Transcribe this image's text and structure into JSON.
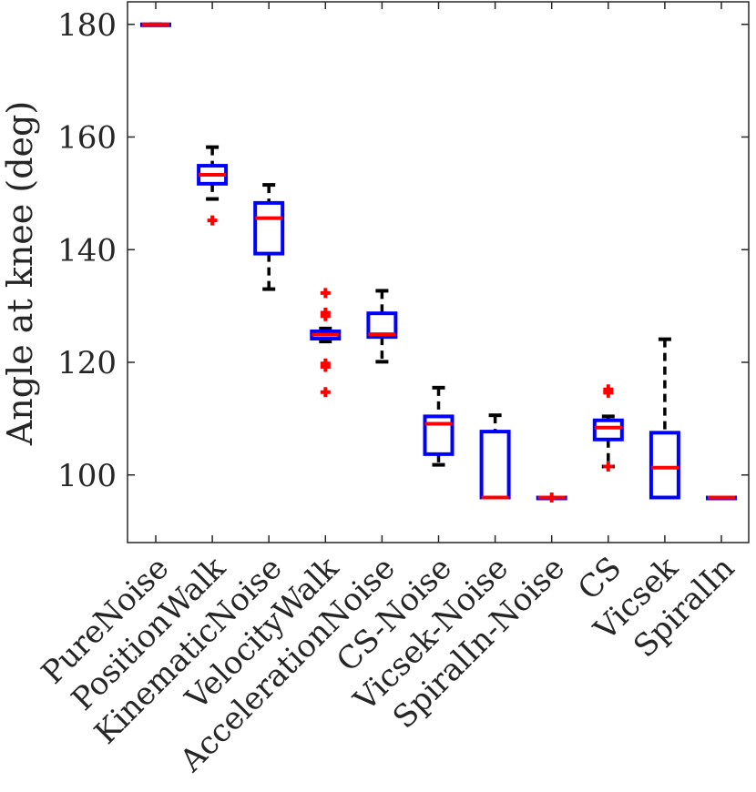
{
  "colors": {
    "box": "#0000ff",
    "median": "#ff0000",
    "whisker": "#000000",
    "outlier": "#ff0000",
    "axis": "#262626"
  },
  "chart_data": {
    "type": "boxplot",
    "ylabel": "Angle at knee (deg)",
    "xlabel": "",
    "ylim": [
      88,
      184
    ],
    "yticks": [
      100,
      120,
      140,
      160,
      180
    ],
    "grid": false,
    "categories": [
      "PureNoise",
      "PositionWalk",
      "KinematicNoise",
      "VelocityWalk",
      "AccelerationNoise",
      "CS-Noise",
      "Vicsek-Noise",
      "SpiralIn-Noise",
      "CS",
      "Vicsek",
      "SpiralIn"
    ],
    "boxes": [
      {
        "name": "PureNoise",
        "whisker_low": 180,
        "q1": 180,
        "median": 180,
        "q3": 180,
        "whisker_high": 180,
        "outliers": []
      },
      {
        "name": "PositionWalk",
        "whisker_low": 149,
        "q1": 151.7,
        "median": 153.3,
        "q3": 154.9,
        "whisker_high": 158.2,
        "outliers": [
          145.2
        ]
      },
      {
        "name": "KinematicNoise",
        "whisker_low": 133,
        "q1": 139.3,
        "median": 145.6,
        "q3": 148.3,
        "whisker_high": 151.5,
        "outliers": []
      },
      {
        "name": "VelocityWalk",
        "whisker_low": 123.7,
        "q1": 124.2,
        "median": 124.9,
        "q3": 125.5,
        "whisker_high": 126,
        "outliers": [
          132.3,
          128.8,
          128.2,
          119.8,
          119.2,
          114.7
        ]
      },
      {
        "name": "AccelerationNoise",
        "whisker_low": 120.1,
        "q1": 124.5,
        "median": 125,
        "q3": 128.7,
        "whisker_high": 132.7,
        "outliers": []
      },
      {
        "name": "CS-Noise",
        "whisker_low": 101.8,
        "q1": 103.7,
        "median": 109.1,
        "q3": 110.4,
        "whisker_high": 115.5,
        "outliers": []
      },
      {
        "name": "Vicsek-Noise",
        "whisker_low": 96,
        "q1": 96,
        "median": 96,
        "q3": 107.7,
        "whisker_high": 110.6,
        "outliers": []
      },
      {
        "name": "SpiralIn-Noise",
        "whisker_low": 96,
        "q1": 96,
        "median": 96,
        "q3": 96,
        "whisker_high": 96,
        "outliers": [
          96
        ]
      },
      {
        "name": "CS",
        "whisker_low": 101.5,
        "q1": 106.3,
        "median": 108.4,
        "q3": 109.7,
        "whisker_high": 110.4,
        "outliers": [
          115.2,
          114.6,
          101.5
        ]
      },
      {
        "name": "Vicsek",
        "whisker_low": 96,
        "q1": 96,
        "median": 101.3,
        "q3": 107.5,
        "whisker_high": 124.1,
        "outliers": []
      },
      {
        "name": "SpiralIn",
        "whisker_low": 96,
        "q1": 96,
        "median": 96,
        "q3": 96,
        "whisker_high": 96,
        "outliers": []
      }
    ]
  }
}
